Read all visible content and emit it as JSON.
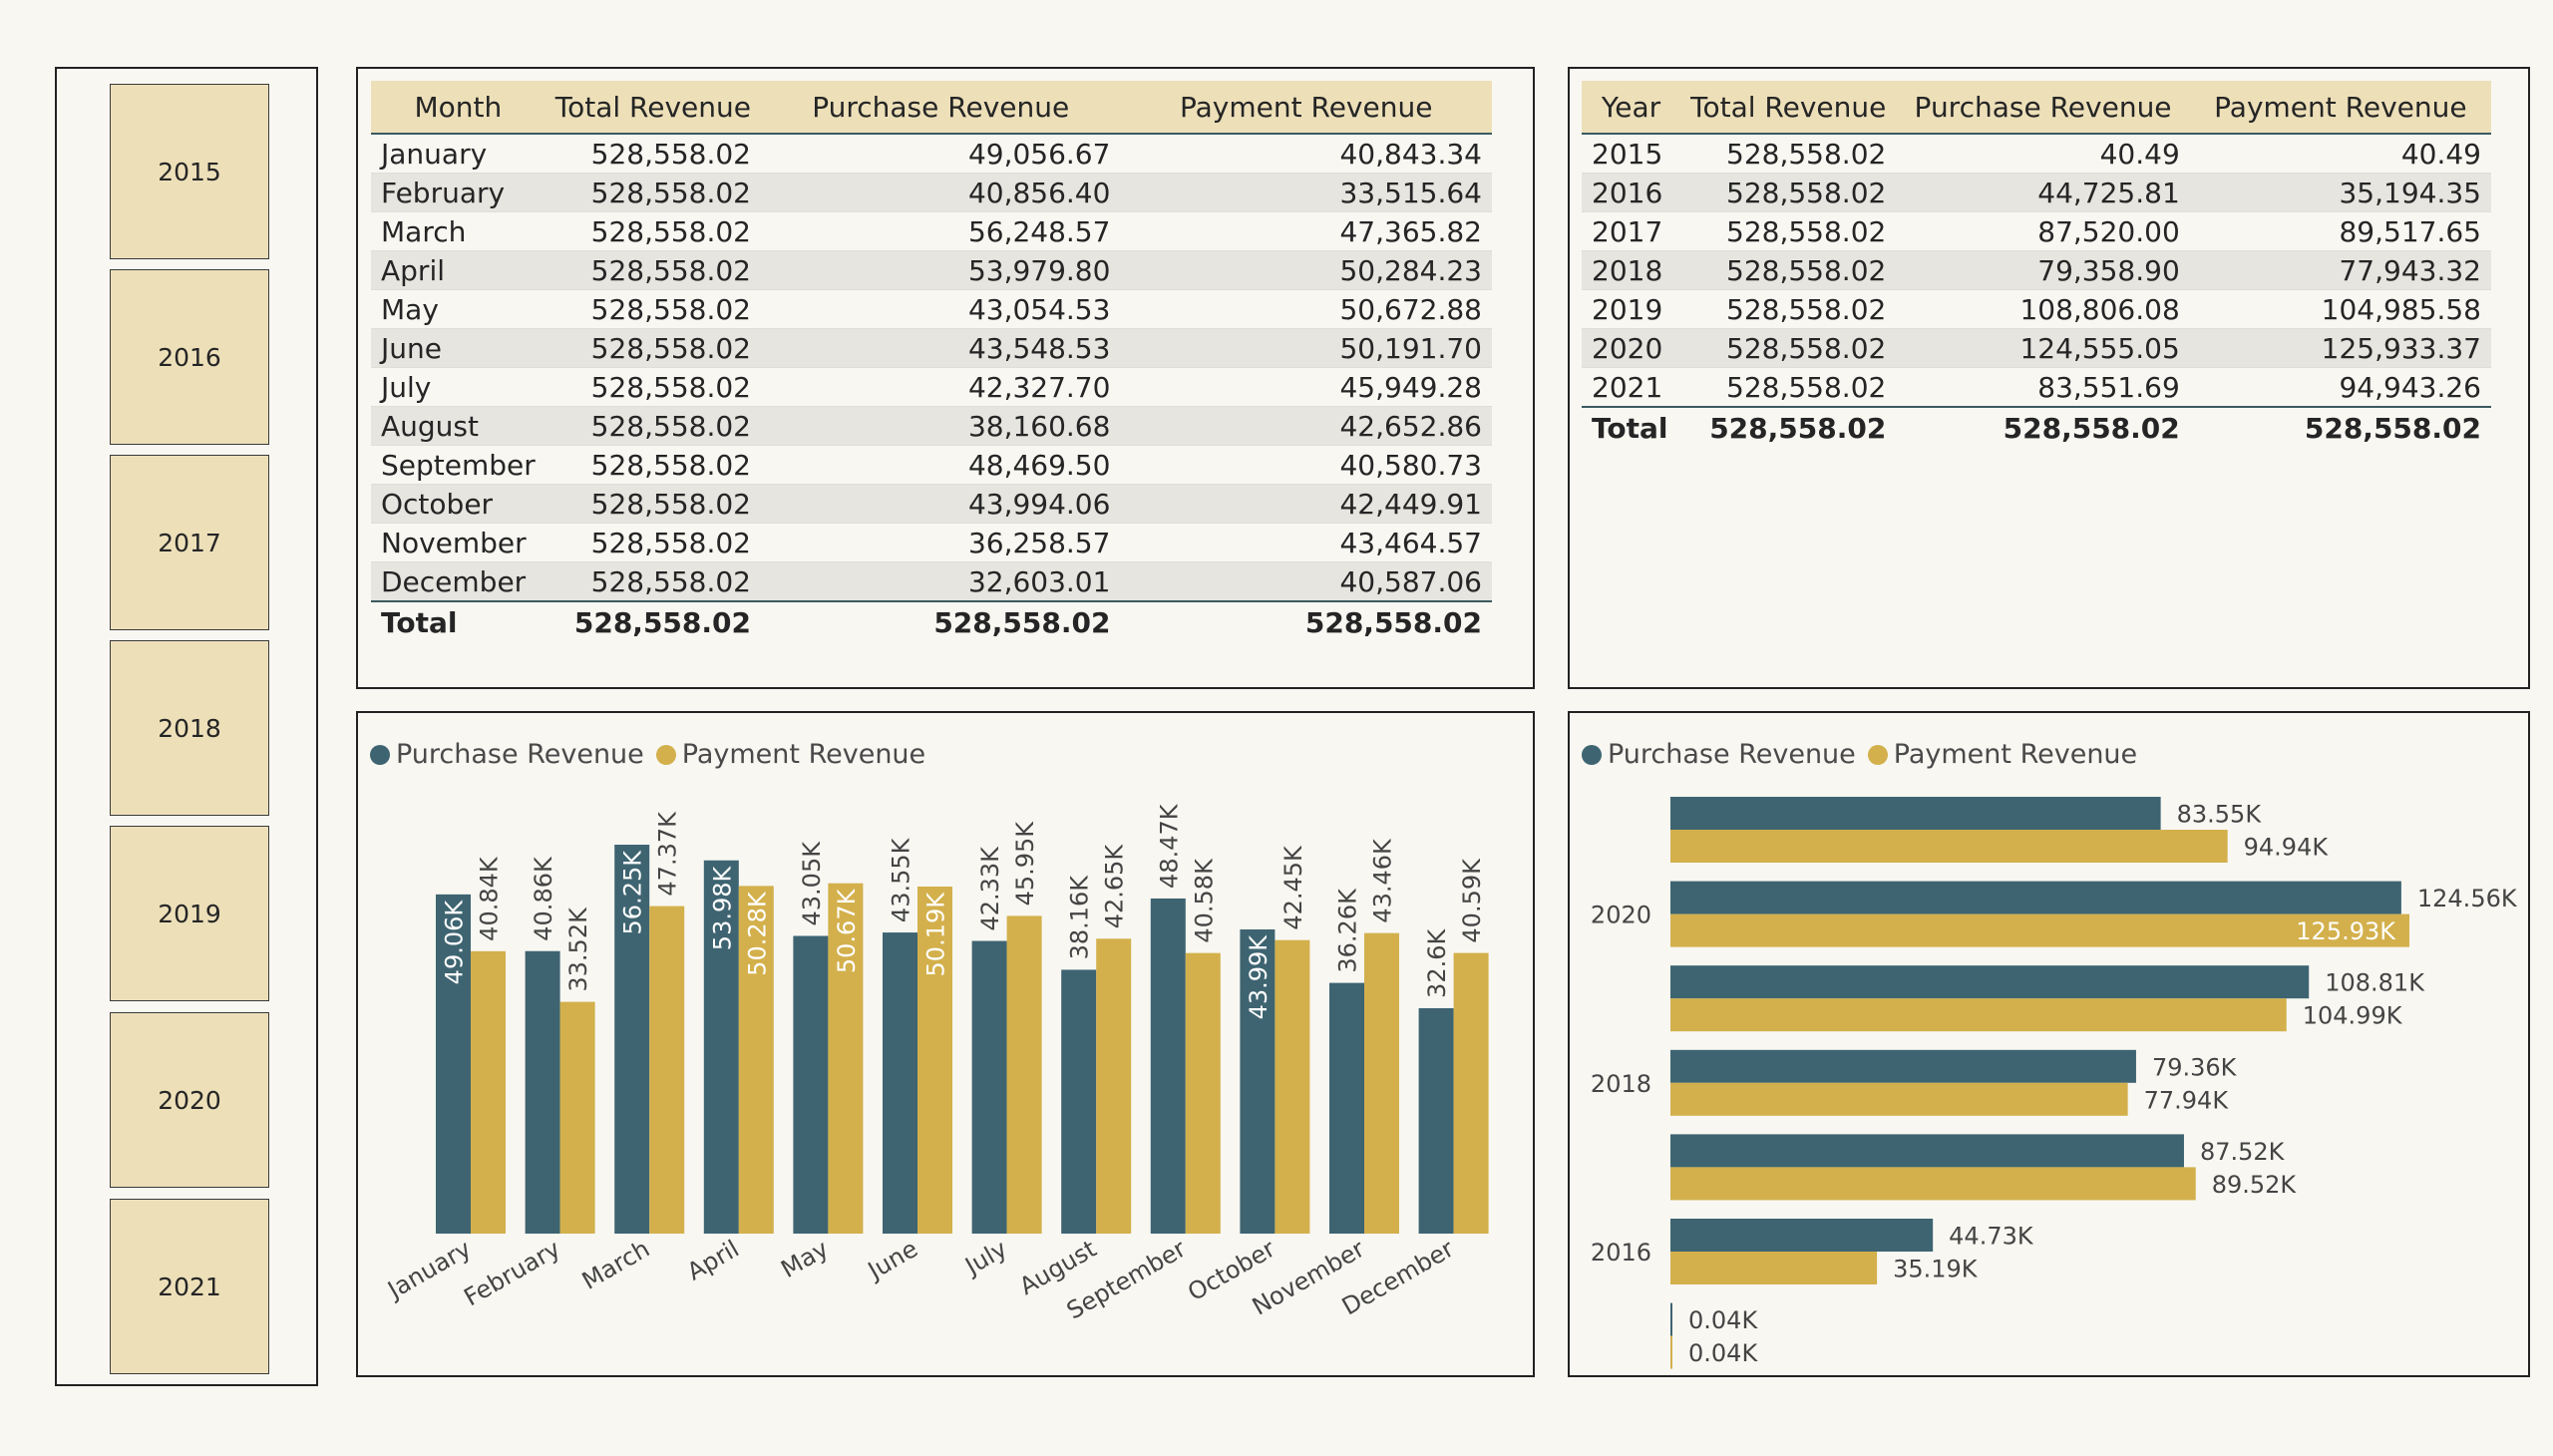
{
  "colors": {
    "purchase": "#3e6471",
    "payment": "#d3b04c",
    "header_bg": "#ede0b9"
  },
  "slicer": {
    "years": [
      "2015",
      "2016",
      "2017",
      "2018",
      "2019",
      "2020",
      "2021"
    ]
  },
  "monthly_table": {
    "headers": [
      "Month",
      "Total Revenue",
      "Purchase Revenue",
      "Payment Revenue"
    ],
    "rows": [
      [
        "January",
        "528,558.02",
        "49,056.67",
        "40,843.34"
      ],
      [
        "February",
        "528,558.02",
        "40,856.40",
        "33,515.64"
      ],
      [
        "March",
        "528,558.02",
        "56,248.57",
        "47,365.82"
      ],
      [
        "April",
        "528,558.02",
        "53,979.80",
        "50,284.23"
      ],
      [
        "May",
        "528,558.02",
        "43,054.53",
        "50,672.88"
      ],
      [
        "June",
        "528,558.02",
        "43,548.53",
        "50,191.70"
      ],
      [
        "July",
        "528,558.02",
        "42,327.70",
        "45,949.28"
      ],
      [
        "August",
        "528,558.02",
        "38,160.68",
        "42,652.86"
      ],
      [
        "September",
        "528,558.02",
        "48,469.50",
        "40,580.73"
      ],
      [
        "October",
        "528,558.02",
        "43,994.06",
        "42,449.91"
      ],
      [
        "November",
        "528,558.02",
        "36,258.57",
        "43,464.57"
      ],
      [
        "December",
        "528,558.02",
        "32,603.01",
        "40,587.06"
      ]
    ],
    "total": [
      "Total",
      "528,558.02",
      "528,558.02",
      "528,558.02"
    ]
  },
  "yearly_table": {
    "headers": [
      "Year",
      "Total Revenue",
      "Purchase Revenue",
      "Payment Revenue"
    ],
    "rows": [
      [
        "2015",
        "528,558.02",
        "40.49",
        "40.49"
      ],
      [
        "2016",
        "528,558.02",
        "44,725.81",
        "35,194.35"
      ],
      [
        "2017",
        "528,558.02",
        "87,520.00",
        "89,517.65"
      ],
      [
        "2018",
        "528,558.02",
        "79,358.90",
        "77,943.32"
      ],
      [
        "2019",
        "528,558.02",
        "108,806.08",
        "104,985.58"
      ],
      [
        "2020",
        "528,558.02",
        "124,555.05",
        "125,933.37"
      ],
      [
        "2021",
        "528,558.02",
        "83,551.69",
        "94,943.26"
      ]
    ],
    "total": [
      "Total",
      "528,558.02",
      "528,558.02",
      "528,558.02"
    ]
  },
  "legend": {
    "purchase": "Purchase Revenue",
    "payment": "Payment Revenue"
  },
  "chart_data": [
    {
      "type": "bar",
      "categories": [
        "January",
        "February",
        "March",
        "April",
        "May",
        "June",
        "July",
        "August",
        "September",
        "October",
        "November",
        "December"
      ],
      "series": [
        {
          "name": "Purchase Revenue",
          "values": [
            49056.67,
            40856.4,
            56248.57,
            53979.8,
            43054.53,
            43548.53,
            42327.7,
            38160.68,
            48469.5,
            43994.06,
            36258.57,
            32603.01
          ],
          "labels": [
            "49.06K",
            "40.86K",
            "56.25K",
            "53.98K",
            "43.05K",
            "43.55K",
            "42.33K",
            "38.16K",
            "48.47K",
            "43.99K",
            "36.26K",
            "32.6K"
          ]
        },
        {
          "name": "Payment Revenue",
          "values": [
            40843.34,
            33515.64,
            47365.82,
            50284.23,
            50672.88,
            50191.7,
            45949.28,
            42652.86,
            40580.73,
            42449.91,
            43464.57,
            40587.06
          ],
          "labels": [
            "40.84K",
            "33.52K",
            "47.37K",
            "50.28K",
            "50.67K",
            "50.19K",
            "45.95K",
            "42.65K",
            "40.58K",
            "42.45K",
            "43.46K",
            "40.59K"
          ]
        }
      ],
      "ylim": [
        0,
        56250
      ],
      "legend": "top-left"
    },
    {
      "type": "bar",
      "orientation": "horizontal",
      "categories": [
        "2021",
        "2020",
        "2019",
        "2018",
        "2017",
        "2016",
        "2015"
      ],
      "tick_labels": [
        "",
        "2020",
        "",
        "2018",
        "",
        "2016",
        ""
      ],
      "series": [
        {
          "name": "Purchase Revenue",
          "values": [
            83551.69,
            124555.05,
            108806.08,
            79358.9,
            87520.0,
            44725.81,
            40.49
          ],
          "labels": [
            "83.55K",
            "124.56K",
            "108.81K",
            "79.36K",
            "87.52K",
            "44.73K",
            "0.04K"
          ]
        },
        {
          "name": "Payment Revenue",
          "values": [
            94943.26,
            125933.37,
            104985.58,
            77943.32,
            89517.65,
            35194.35,
            40.49
          ],
          "labels": [
            "94.94K",
            "125.93K",
            "104.99K",
            "77.94K",
            "89.52K",
            "35.19K",
            "0.04K"
          ]
        }
      ],
      "xlim": [
        0,
        125933.37
      ],
      "legend": "top-left"
    }
  ]
}
